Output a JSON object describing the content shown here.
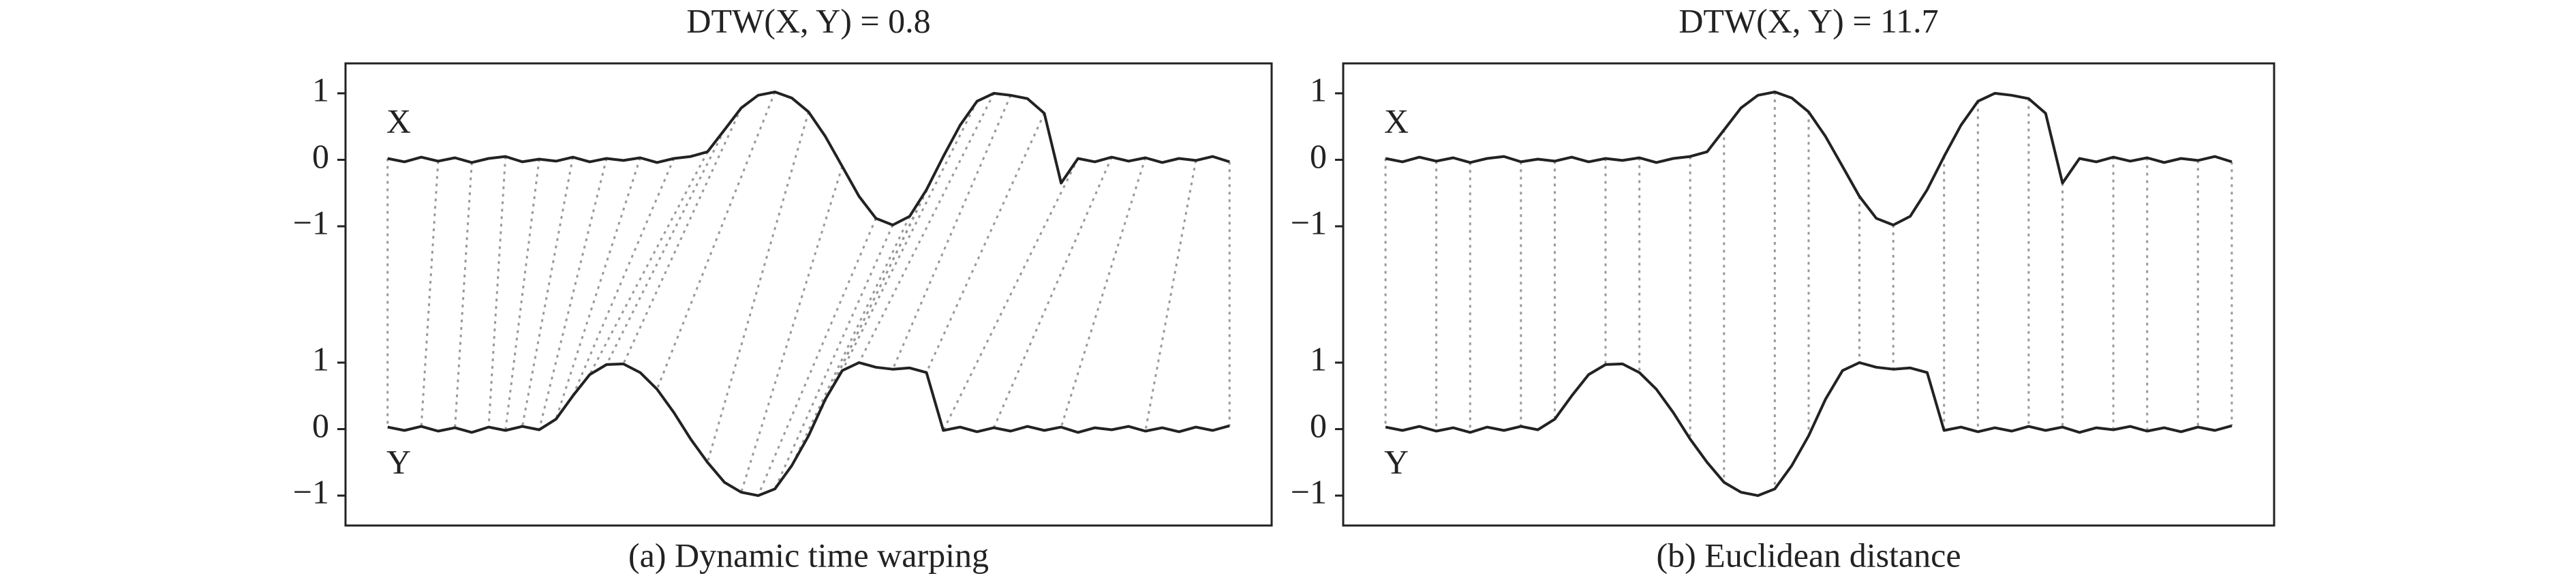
{
  "chart_data": [
    {
      "type": "line",
      "title": "DTW(X, Y) = 0.8",
      "caption": "(a) Dynamic time warping",
      "x": [
        0,
        2,
        4,
        6,
        8,
        10,
        12,
        14,
        16,
        18,
        20,
        22,
        24,
        26,
        28,
        30,
        32,
        34,
        36,
        38,
        40,
        42,
        44,
        46,
        48,
        50,
        52,
        54,
        56,
        58,
        60,
        62,
        64,
        66,
        68,
        70,
        72,
        74,
        76,
        78,
        80,
        82,
        84,
        86,
        88,
        90,
        92,
        94,
        96,
        98,
        100
      ],
      "series": [
        {
          "name": "X",
          "color": "#222222",
          "axis": "y2",
          "values": [
            0.02,
            -0.03,
            0.04,
            -0.02,
            0.03,
            -0.04,
            0.02,
            0.05,
            -0.03,
            0.01,
            -0.02,
            0.04,
            -0.03,
            0.02,
            -0.01,
            0.03,
            -0.04,
            0.02,
            0.05,
            0.12,
            0.45,
            0.78,
            0.97,
            1.02,
            0.93,
            0.72,
            0.35,
            -0.1,
            -0.55,
            -0.88,
            -0.98,
            -0.85,
            -0.45,
            0.05,
            0.52,
            0.88,
            1.0,
            0.97,
            0.92,
            0.7,
            -0.35,
            0.02,
            -0.03,
            0.04,
            -0.02,
            0.03,
            -0.04,
            0.02,
            -0.01,
            0.05,
            -0.03
          ]
        },
        {
          "name": "Y",
          "color": "#222222",
          "values": [
            0.03,
            -0.02,
            0.04,
            -0.03,
            0.02,
            -0.05,
            0.03,
            -0.02,
            0.04,
            -0.01,
            0.15,
            0.5,
            0.82,
            0.97,
            0.98,
            0.85,
            0.6,
            0.25,
            -0.15,
            -0.5,
            -0.8,
            -0.95,
            -1.0,
            -0.9,
            -0.55,
            -0.1,
            0.45,
            0.88,
            1.0,
            0.93,
            0.9,
            0.92,
            0.85,
            -0.02,
            0.03,
            -0.04,
            0.02,
            -0.03,
            0.04,
            -0.02,
            0.03,
            -0.05,
            0.02,
            -0.01,
            0.04,
            -0.03,
            0.02,
            -0.04,
            0.03,
            -0.02,
            0.05
          ]
        }
      ],
      "alignment": [
        [
          0,
          0
        ],
        [
          3,
          2
        ],
        [
          5,
          4
        ],
        [
          7,
          6
        ],
        [
          9,
          7
        ],
        [
          11,
          8
        ],
        [
          13,
          9
        ],
        [
          15,
          10
        ],
        [
          17,
          11
        ],
        [
          19,
          12
        ],
        [
          20,
          13
        ],
        [
          21,
          14
        ],
        [
          23,
          16
        ],
        [
          25,
          19
        ],
        [
          27,
          21
        ],
        [
          29,
          22
        ],
        [
          30,
          23
        ],
        [
          31,
          24
        ],
        [
          32,
          25
        ],
        [
          33,
          26
        ],
        [
          35,
          27
        ],
        [
          36,
          28
        ],
        [
          37,
          30
        ],
        [
          39,
          32
        ],
        [
          41,
          33
        ],
        [
          43,
          36
        ],
        [
          45,
          40
        ],
        [
          48,
          45
        ],
        [
          50,
          50
        ]
      ],
      "alignment_color": "#999999",
      "xlim": [
        -5,
        105
      ],
      "ylim": [
        -1.45,
        5.5
      ],
      "y2lim": [
        -5.5,
        1.45
      ],
      "yticks": [
        {
          "value": -1,
          "label": "−1"
        },
        0,
        1
      ],
      "y2ticks": [
        {
          "value": -1,
          "label": "−1"
        },
        0,
        1
      ]
    },
    {
      "type": "line",
      "title": "DTW(X, Y) = 11.7",
      "caption": "(b) Euclidean distance",
      "x": [
        0,
        2,
        4,
        6,
        8,
        10,
        12,
        14,
        16,
        18,
        20,
        22,
        24,
        26,
        28,
        30,
        32,
        34,
        36,
        38,
        40,
        42,
        44,
        46,
        48,
        50,
        52,
        54,
        56,
        58,
        60,
        62,
        64,
        66,
        68,
        70,
        72,
        74,
        76,
        78,
        80,
        82,
        84,
        86,
        88,
        90,
        92,
        94,
        96,
        98,
        100
      ],
      "series": [
        {
          "name": "X",
          "color": "#222222",
          "axis": "y2",
          "values": [
            0.02,
            -0.03,
            0.04,
            -0.02,
            0.03,
            -0.04,
            0.02,
            0.05,
            -0.03,
            0.01,
            -0.02,
            0.04,
            -0.03,
            0.02,
            -0.01,
            0.03,
            -0.04,
            0.02,
            0.05,
            0.12,
            0.45,
            0.78,
            0.97,
            1.02,
            0.93,
            0.72,
            0.35,
            -0.1,
            -0.55,
            -0.88,
            -0.98,
            -0.85,
            -0.45,
            0.05,
            0.52,
            0.88,
            1.0,
            0.97,
            0.92,
            0.7,
            -0.35,
            0.02,
            -0.03,
            0.04,
            -0.02,
            0.03,
            -0.04,
            0.02,
            -0.01,
            0.05,
            -0.03
          ]
        },
        {
          "name": "Y",
          "color": "#222222",
          "values": [
            0.03,
            -0.02,
            0.04,
            -0.03,
            0.02,
            -0.05,
            0.03,
            -0.02,
            0.04,
            -0.01,
            0.15,
            0.5,
            0.82,
            0.97,
            0.98,
            0.85,
            0.6,
            0.25,
            -0.15,
            -0.5,
            -0.8,
            -0.95,
            -1.0,
            -0.9,
            -0.55,
            -0.1,
            0.45,
            0.88,
            1.0,
            0.93,
            0.9,
            0.92,
            0.85,
            -0.02,
            0.03,
            -0.04,
            0.02,
            -0.03,
            0.04,
            -0.02,
            0.03,
            -0.05,
            0.02,
            -0.01,
            0.04,
            -0.03,
            0.02,
            -0.04,
            0.03,
            -0.02,
            0.05
          ]
        }
      ],
      "alignment": [
        [
          0,
          0
        ],
        [
          3,
          3
        ],
        [
          5,
          5
        ],
        [
          8,
          8
        ],
        [
          10,
          10
        ],
        [
          13,
          13
        ],
        [
          15,
          15
        ],
        [
          18,
          18
        ],
        [
          20,
          20
        ],
        [
          23,
          23
        ],
        [
          25,
          25
        ],
        [
          28,
          28
        ],
        [
          30,
          30
        ],
        [
          33,
          33
        ],
        [
          35,
          35
        ],
        [
          38,
          38
        ],
        [
          40,
          40
        ],
        [
          43,
          43
        ],
        [
          45,
          45
        ],
        [
          48,
          48
        ],
        [
          50,
          50
        ]
      ],
      "alignment_color": "#999999",
      "xlim": [
        -5,
        105
      ],
      "ylim": [
        -1.45,
        5.5
      ],
      "y2lim": [
        -5.5,
        1.45
      ],
      "yticks": [
        {
          "value": -1,
          "label": "−1"
        },
        0,
        1
      ],
      "y2ticks": [
        {
          "value": -1,
          "label": "−1"
        },
        0,
        1
      ]
    }
  ]
}
